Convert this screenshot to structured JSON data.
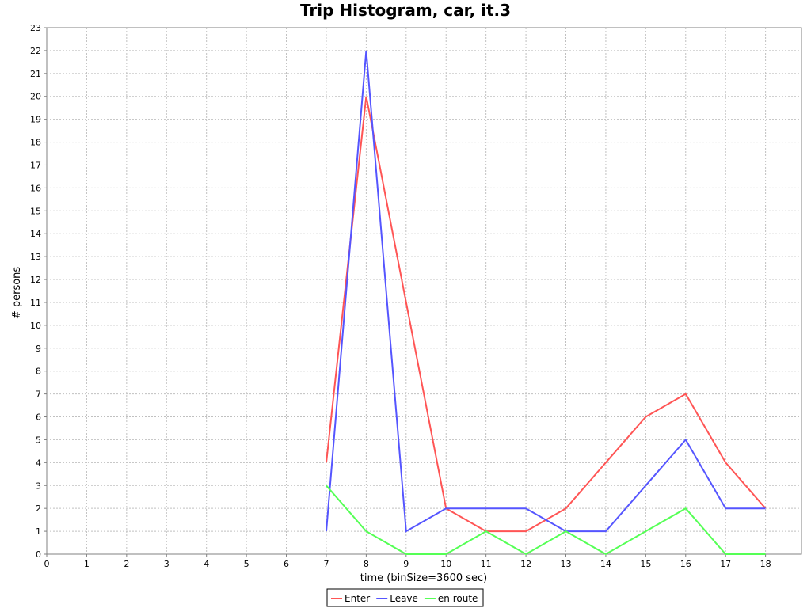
{
  "chart_data": {
    "type": "line",
    "title": "Trip Histogram, car, it.3",
    "xlabel": "time (binSize=3600 sec)",
    "ylabel": "# persons",
    "xlim": [
      0,
      18.9
    ],
    "ylim": [
      0,
      23
    ],
    "x_ticks": [
      0,
      1,
      2,
      3,
      4,
      5,
      6,
      7,
      8,
      9,
      10,
      11,
      12,
      13,
      14,
      15,
      16,
      17,
      18
    ],
    "y_ticks": [
      0,
      1,
      2,
      3,
      4,
      5,
      6,
      7,
      8,
      9,
      10,
      11,
      12,
      13,
      14,
      15,
      16,
      17,
      18,
      19,
      20,
      21,
      22,
      23
    ],
    "grid": true,
    "legend_position": "bottom-center",
    "x": [
      7,
      8,
      9,
      10,
      11,
      12,
      13,
      14,
      15,
      16,
      17,
      18
    ],
    "series": [
      {
        "name": "Enter",
        "color": "#ff5555",
        "values": [
          4,
          20,
          11,
          2,
          1,
          1,
          2,
          4,
          6,
          7,
          4,
          2
        ]
      },
      {
        "name": "Leave",
        "color": "#5555ff",
        "values": [
          1,
          22,
          1,
          2,
          2,
          2,
          1,
          1,
          3,
          5,
          2,
          2
        ]
      },
      {
        "name": "en route",
        "color": "#55ff55",
        "values": [
          3,
          1,
          0,
          0,
          1,
          0,
          1,
          0,
          1,
          2,
          0,
          0
        ]
      }
    ]
  }
}
